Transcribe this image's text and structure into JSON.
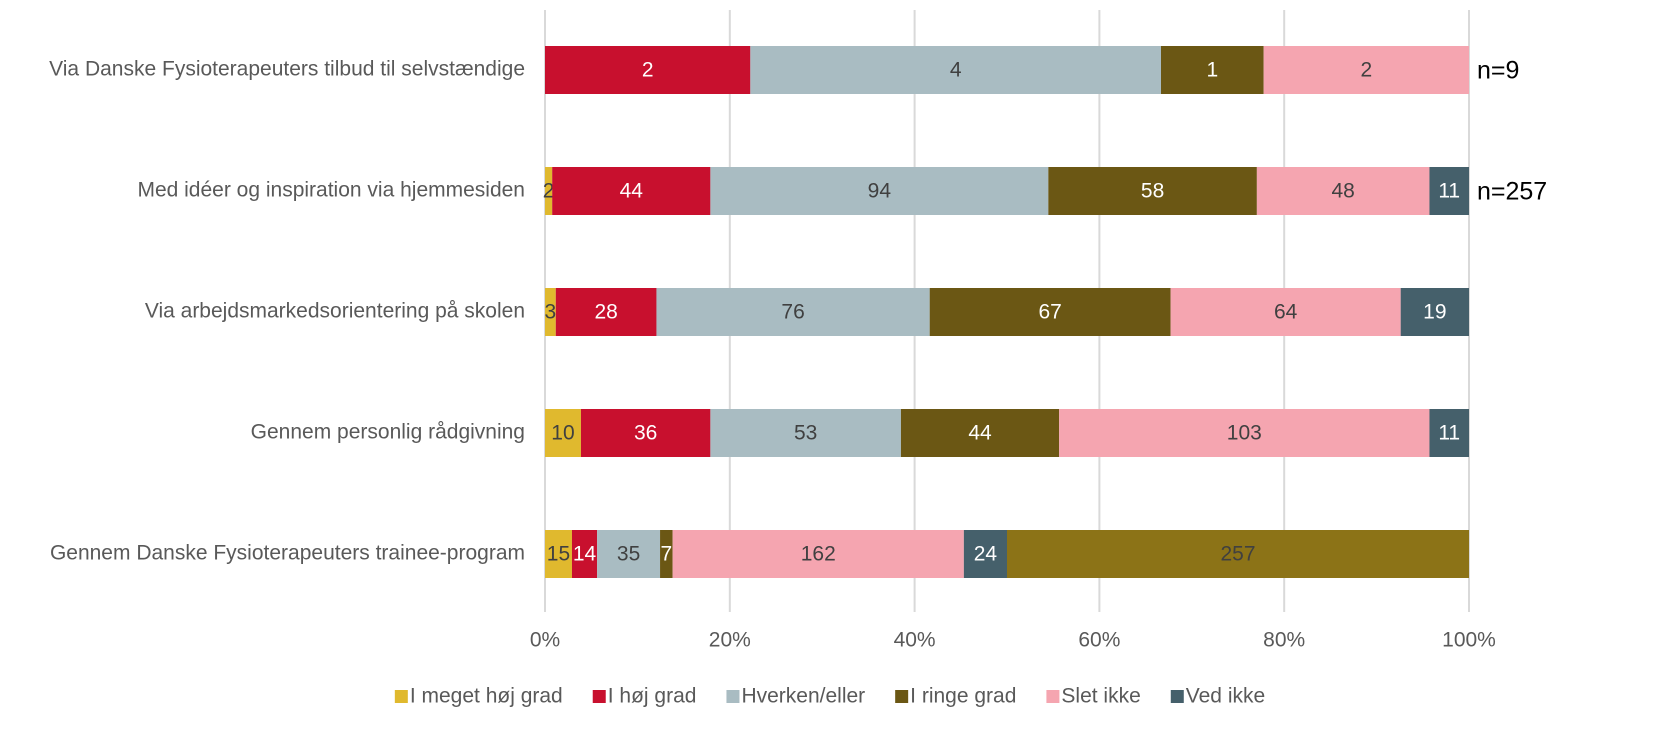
{
  "chart_data": {
    "type": "stacked-percent-bar",
    "categories": [
      "Via Danske Fysioterapeuters tilbud til selvstændige",
      "Med idéer og inspiration via hjemmesiden",
      "Via arbejdsmarkedsorientering på skolen",
      "Gennem personlig rådgivning",
      "Gennem Danske Fysioterapeuters trainee-program"
    ],
    "series": [
      {
        "name": "I meget høj grad",
        "color": "#e0b92e",
        "label_color": "#404040",
        "values": [
          null,
          2,
          3,
          10,
          15
        ]
      },
      {
        "name": "I høj grad",
        "color": "#c8102e",
        "label_color": "#ffffff",
        "values": [
          2,
          44,
          28,
          36,
          14
        ]
      },
      {
        "name": "Hverken/eller",
        "color": "#a9bcc2",
        "label_color": "#404040",
        "values": [
          4,
          94,
          76,
          53,
          35
        ]
      },
      {
        "name": "I ringe grad",
        "color": "#6b5714",
        "label_color": "#ffffff",
        "values": [
          1,
          58,
          67,
          44,
          7
        ]
      },
      {
        "name": "Slet ikke",
        "color": "#f5a5b0",
        "label_color": "#404040",
        "values": [
          2,
          48,
          64,
          103,
          162
        ]
      },
      {
        "name": "Ved ikke",
        "color": "#45606b",
        "label_color": "#ffffff",
        "values": [
          null,
          11,
          19,
          11,
          24
        ]
      },
      {
        "name": null,
        "color": "#8c7317",
        "label_color": "#404040",
        "values": [
          null,
          null,
          null,
          null,
          257
        ]
      }
    ],
    "n_labels": [
      "n=9",
      "n=257",
      null,
      null,
      null
    ],
    "xlim": [
      0,
      100
    ],
    "xticks": [
      {
        "value": 0,
        "label": "0%"
      },
      {
        "value": 20,
        "label": "20%"
      },
      {
        "value": 40,
        "label": "40%"
      },
      {
        "value": 60,
        "label": "60%"
      },
      {
        "value": 80,
        "label": "80%"
      },
      {
        "value": 100,
        "label": "100%"
      }
    ],
    "grid": true
  }
}
